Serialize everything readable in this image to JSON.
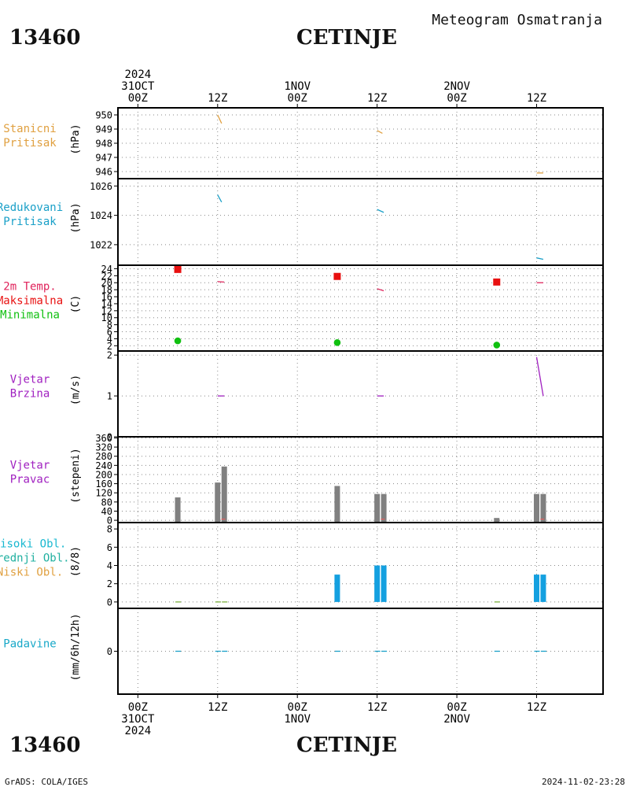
{
  "header": {
    "station_id": "13460",
    "station_name": "CETINJE",
    "product_title": "Meteogram Osmatranja"
  },
  "footer": {
    "station_id": "13460",
    "station_name": "CETINJE",
    "credit": "GrADS: COLA/IGES",
    "timestamp": "2024-11-02-23:28"
  },
  "time_axis": {
    "top_labels": [
      {
        "t": 0,
        "lines": [
          "2024",
          "31OCT",
          "00Z"
        ]
      },
      {
        "t": 12,
        "lines": [
          "12Z"
        ]
      },
      {
        "t": 24,
        "lines": [
          "1NOV",
          "00Z"
        ]
      },
      {
        "t": 36,
        "lines": [
          "12Z"
        ]
      },
      {
        "t": 48,
        "lines": [
          "2NOV",
          "00Z"
        ]
      },
      {
        "t": 60,
        "lines": [
          "12Z"
        ]
      }
    ],
    "bottom_labels": [
      {
        "t": 0,
        "lines": [
          "00Z",
          "31OCT",
          "2024"
        ]
      },
      {
        "t": 12,
        "lines": [
          "12Z"
        ]
      },
      {
        "t": 24,
        "lines": [
          "00Z",
          "1NOV"
        ]
      },
      {
        "t": 36,
        "lines": [
          "12Z"
        ]
      },
      {
        "t": 48,
        "lines": [
          "00Z",
          "2NOV"
        ]
      },
      {
        "t": 60,
        "lines": [
          "12Z"
        ]
      }
    ],
    "range_hours": [
      -3,
      70
    ]
  },
  "panels": [
    {
      "id": "pressure",
      "labels": [
        {
          "text": "Stanicni",
          "color": "#e0a040"
        },
        {
          "text": "Pritisak",
          "color": "#e0a040"
        }
      ],
      "unit": "(hPa)"
    },
    {
      "id": "mslp",
      "labels": [
        {
          "text": "Redukovani",
          "color": "#1aa0c8"
        },
        {
          "text": "Pritisak",
          "color": "#1aa0c8"
        }
      ],
      "unit": "(hPa)"
    },
    {
      "id": "temp",
      "labels": [
        {
          "text": "2m Temp.",
          "color": "#e0245c"
        },
        {
          "text": "Maksimalna",
          "color": "#e81010"
        },
        {
          "text": "Minimalna",
          "color": "#10c010"
        }
      ],
      "unit": "(C)"
    },
    {
      "id": "windspeed",
      "labels": [
        {
          "text": "Vjetar",
          "color": "#a020c0"
        },
        {
          "text": "Brzina",
          "color": "#a020c0"
        }
      ],
      "unit": "(m/s)"
    },
    {
      "id": "winddir",
      "labels": [
        {
          "text": "Vjetar",
          "color": "#a020c0"
        },
        {
          "text": "Pravac",
          "color": "#a020c0"
        }
      ],
      "unit": "(stepeni)"
    },
    {
      "id": "clouds",
      "labels": [
        {
          "text": "Visoki Obl.",
          "color": "#18b8d0"
        },
        {
          "text": "Srednji Obl.",
          "color": "#20b0a0"
        },
        {
          "text": "Niski Obl.",
          "color": "#e0a040"
        }
      ],
      "unit": "(8/8)"
    },
    {
      "id": "precip",
      "labels": [
        {
          "text": "Padavine",
          "color": "#18a8c8"
        }
      ],
      "unit": "(mm/6h/12h)"
    }
  ],
  "chart_data": {
    "type": "line",
    "x_unit": "hours since 2024-10-31 00Z",
    "station_pressure": {
      "ylim": [
        945.5,
        950.5
      ],
      "ticks": [
        946,
        947,
        948,
        949,
        950
      ],
      "color": "#e0a040",
      "segments": [
        [
          [
            12,
            950.0
          ],
          [
            12.6,
            949.4
          ]
        ],
        [
          [
            36,
            948.9
          ],
          [
            36.8,
            948.7
          ]
        ],
        [
          [
            60,
            945.9
          ],
          [
            61,
            945.9
          ]
        ]
      ]
    },
    "reduced_pressure": {
      "ylim": [
        1020.6,
        1026.5
      ],
      "ticks": [
        1022,
        1024,
        1026
      ],
      "color": "#1aa0c8",
      "segments": [
        [
          [
            12,
            1025.4
          ],
          [
            12.6,
            1024.9
          ]
        ],
        [
          [
            36,
            1024.4
          ],
          [
            37,
            1024.2
          ]
        ],
        [
          [
            60,
            1021.1
          ],
          [
            61,
            1021.0
          ]
        ]
      ]
    },
    "temperature": {
      "ylim": [
        0.5,
        25
      ],
      "ticks": [
        2,
        4,
        6,
        8,
        10,
        12,
        14,
        16,
        18,
        20,
        22,
        24
      ],
      "tick_labels": [
        "2",
        "4",
        "6",
        "8",
        "10",
        "12",
        "14",
        "16",
        "18",
        "20",
        "22",
        "24"
      ],
      "temp2m_color": "#e0245c",
      "temp2m_segments": [
        [
          [
            12,
            20.3
          ],
          [
            13,
            20.2
          ]
        ],
        [
          [
            36,
            18.3
          ],
          [
            37,
            17.7
          ]
        ],
        [
          [
            60,
            20.0
          ],
          [
            61,
            20.0
          ]
        ]
      ],
      "max": {
        "color": "#e81010",
        "points": [
          [
            6,
            23.8
          ],
          [
            30,
            21.8
          ],
          [
            54,
            20.2
          ]
        ]
      },
      "min": {
        "color": "#10c010",
        "points": [
          [
            6,
            3.4
          ],
          [
            30,
            2.9
          ],
          [
            54,
            2.2
          ]
        ]
      }
    },
    "wind_speed": {
      "ylim": [
        0,
        2.1
      ],
      "ticks": [
        0,
        1,
        2
      ],
      "color": "#a020c0",
      "segments": [
        [
          [
            12,
            1.0
          ],
          [
            13,
            1.0
          ]
        ],
        [
          [
            36,
            1.0
          ],
          [
            37,
            1.0
          ]
        ],
        [
          [
            60,
            1.95
          ],
          [
            61,
            1.0
          ]
        ]
      ]
    },
    "wind_direction": {
      "ylim": [
        -10,
        365
      ],
      "ticks": [
        0,
        40,
        80,
        120,
        160,
        200,
        240,
        280,
        320,
        360
      ],
      "tick_labels": [
        "0",
        "40",
        "80",
        "120",
        "160",
        "200",
        "240",
        "280",
        "320",
        "360"
      ],
      "bar_color": "#808080",
      "bars": [
        [
          6,
          100
        ],
        [
          12,
          165
        ],
        [
          13,
          235
        ],
        [
          30,
          150
        ],
        [
          36,
          115
        ],
        [
          37,
          115
        ],
        [
          54,
          10
        ],
        [
          60,
          115
        ],
        [
          61,
          115
        ]
      ],
      "marker_color": "#e06060",
      "markers": [
        [
          12.8,
          5
        ],
        [
          36.8,
          5
        ],
        [
          60.8,
          5
        ]
      ]
    },
    "cloud_cover": {
      "ylim": [
        -0.7,
        8.7
      ],
      "ticks": [
        0,
        2,
        4,
        6,
        8
      ],
      "high_color": "#14a0e0",
      "high_bars": [
        [
          30,
          3
        ],
        [
          36,
          4
        ],
        [
          37,
          4
        ],
        [
          60,
          3
        ],
        [
          61,
          3
        ]
      ],
      "low_color": "#7cb040",
      "low_marks": [
        6,
        12,
        13,
        54
      ]
    },
    "precipitation": {
      "ylim": [
        -5,
        5
      ],
      "ticks": [
        0
      ],
      "color": "#1aa0c8",
      "marks": [
        6,
        12,
        13,
        30,
        36,
        37,
        54,
        60,
        61
      ]
    }
  }
}
